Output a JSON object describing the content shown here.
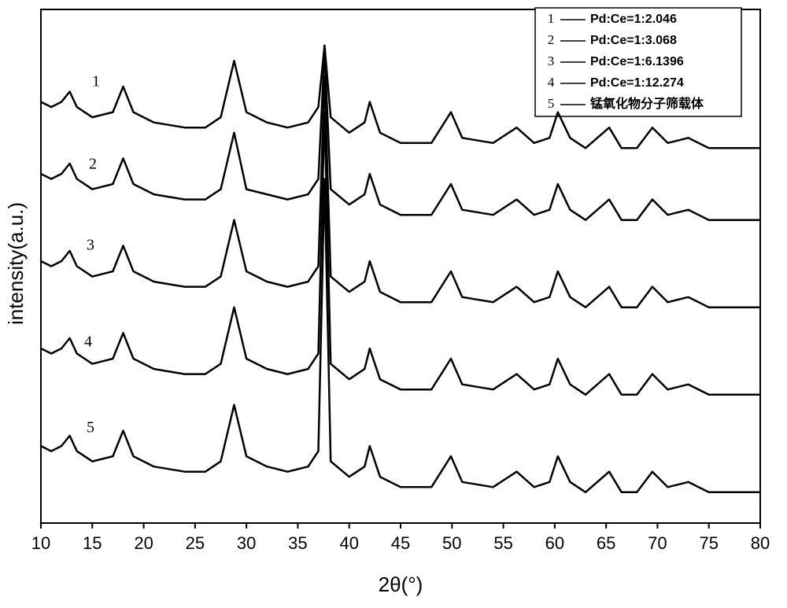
{
  "chart_data": {
    "type": "line",
    "xlabel": "2θ(°)",
    "ylabel": "intensity(a.u.)",
    "xlim": [
      10,
      80
    ],
    "xticks": [
      10,
      15,
      20,
      25,
      30,
      35,
      40,
      45,
      50,
      55,
      60,
      65,
      70,
      75,
      80
    ],
    "ylim": [
      0,
      100
    ],
    "x": [
      10,
      11,
      12,
      12.8,
      13.5,
      15,
      17,
      18,
      19,
      21,
      24,
      26,
      27.5,
      28.8,
      30,
      32,
      34,
      36,
      37,
      37.6,
      38.2,
      40,
      41.5,
      42,
      43,
      45,
      48,
      49.9,
      51,
      54,
      56.3,
      58,
      59.5,
      60.3,
      61.5,
      63,
      65.3,
      66.5,
      68,
      69.5,
      71,
      73,
      75,
      78,
      80
    ],
    "legend": "upper right",
    "series": [
      {
        "number": "1",
        "name": "Pd:Ce=1:2.046",
        "color": "#000000",
        "values": [
          82,
          81,
          82,
          84,
          81,
          79,
          80,
          85,
          80,
          78,
          77,
          77,
          79,
          90,
          80,
          78,
          77,
          78,
          81,
          93,
          79,
          76,
          78,
          82,
          76,
          74,
          74,
          80,
          75,
          74,
          77,
          74,
          75,
          80,
          75,
          73,
          77,
          73,
          73,
          77,
          74,
          75,
          73,
          73,
          73
        ]
      },
      {
        "number": "2",
        "name": "Pd:Ce=1:3.068",
        "color": "#000000",
        "values": [
          68,
          67,
          68,
          70,
          67,
          65,
          66,
          71,
          66,
          64,
          63,
          63,
          65,
          76,
          65,
          64,
          63,
          64,
          67,
          92,
          65,
          62,
          64,
          68,
          62,
          60,
          60,
          66,
          61,
          60,
          63,
          60,
          61,
          66,
          61,
          59,
          63,
          59,
          59,
          63,
          60,
          61,
          59,
          59,
          59
        ]
      },
      {
        "number": "3",
        "name": "Pd:Ce=1:6.1396",
        "color": "#000000",
        "values": [
          51,
          50,
          51,
          53,
          50,
          48,
          49,
          54,
          49,
          47,
          46,
          46,
          48,
          59,
          49,
          47,
          46,
          47,
          50,
          87,
          48,
          45,
          47,
          51,
          45,
          43,
          43,
          49,
          44,
          43,
          46,
          43,
          44,
          49,
          44,
          42,
          46,
          42,
          42,
          46,
          43,
          44,
          42,
          42,
          42
        ]
      },
      {
        "number": "4",
        "name": "Pd:Ce=1:12.274",
        "color": "#000000",
        "values": [
          34,
          33,
          34,
          36,
          33,
          31,
          32,
          37,
          32,
          30,
          29,
          29,
          31,
          42,
          32,
          30,
          29,
          30,
          33,
          80,
          31,
          28,
          30,
          34,
          28,
          26,
          26,
          32,
          27,
          26,
          29,
          26,
          27,
          32,
          27,
          25,
          29,
          25,
          25,
          29,
          26,
          27,
          25,
          25,
          25
        ]
      },
      {
        "number": "5",
        "name": "锰氧化物分子筛载体",
        "color": "#000000",
        "values": [
          15,
          14,
          15,
          17,
          14,
          12,
          13,
          18,
          13,
          11,
          10,
          10,
          12,
          23,
          13,
          11,
          10,
          11,
          14,
          67,
          12,
          9,
          11,
          15,
          9,
          7,
          7,
          13,
          8,
          7,
          10,
          7,
          8,
          13,
          8,
          6,
          10,
          6,
          6,
          10,
          7,
          8,
          6,
          6,
          6
        ]
      }
    ]
  }
}
